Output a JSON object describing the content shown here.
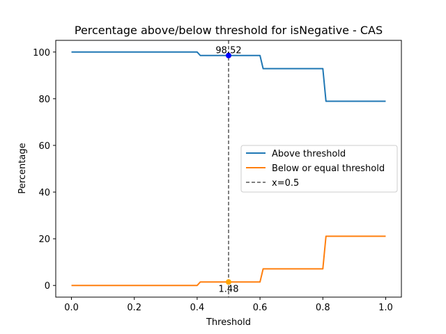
{
  "chart_data": {
    "type": "line",
    "title": "Percentage above/below threshold for isNegative - CAS",
    "xlabel": "Threshold",
    "ylabel": "Percentage",
    "xlim": [
      -0.05,
      1.05
    ],
    "ylim": [
      -5,
      105
    ],
    "xticks": [
      0.0,
      0.2,
      0.4,
      0.6,
      0.8,
      1.0
    ],
    "xtick_labels": [
      "0.0",
      "0.2",
      "0.4",
      "0.6",
      "0.8",
      "1.0"
    ],
    "yticks": [
      0,
      20,
      40,
      60,
      80,
      100
    ],
    "ytick_labels": [
      "0",
      "20",
      "40",
      "60",
      "80",
      "100"
    ],
    "grid": false,
    "legend_position": "center-right",
    "series": [
      {
        "name": "Above threshold",
        "color": "#1f77b4",
        "x": [
          0.0,
          0.4,
          0.41,
          0.6,
          0.61,
          0.8,
          0.81,
          1.0
        ],
        "y": [
          100,
          100,
          98.52,
          98.52,
          92.9,
          92.9,
          78.9,
          78.9
        ]
      },
      {
        "name": "Below or equal threshold",
        "color": "#ff7f0e",
        "x": [
          0.0,
          0.4,
          0.41,
          0.6,
          0.61,
          0.8,
          0.81,
          1.0
        ],
        "y": [
          0,
          0,
          1.48,
          1.48,
          7.1,
          7.1,
          21.1,
          21.1
        ]
      }
    ],
    "vline": {
      "name": "x=0.5",
      "x": 0.5,
      "color": "#808080",
      "style": "dashed"
    },
    "markers": [
      {
        "x": 0.5,
        "y": 98.52,
        "label": "98.52",
        "color": "#0000ff"
      },
      {
        "x": 0.5,
        "y": 1.48,
        "label": "1.48",
        "color": "#ffa500"
      }
    ]
  }
}
